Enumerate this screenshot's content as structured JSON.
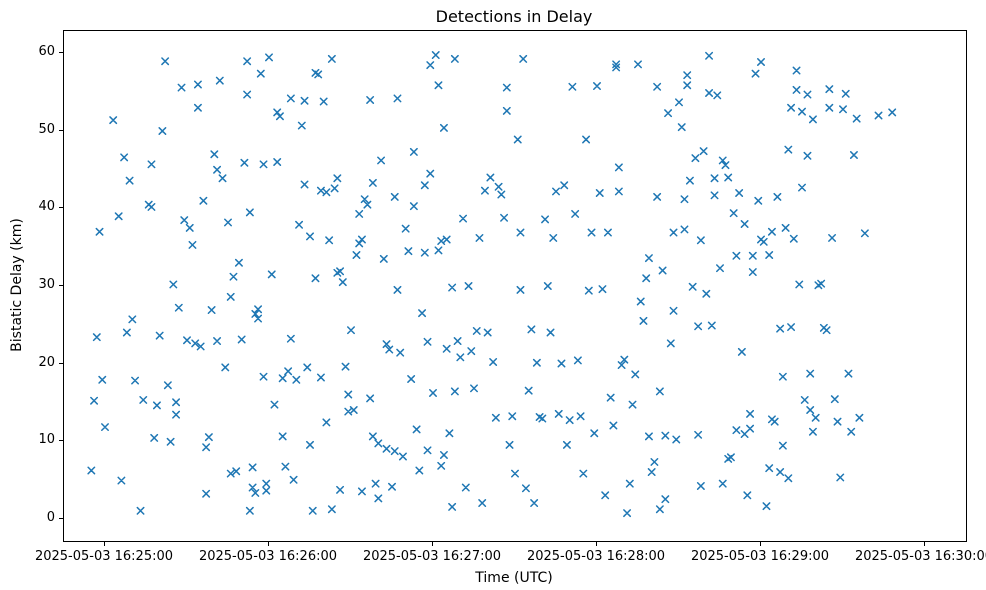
{
  "chart_data": {
    "type": "scatter",
    "title": "Detections in Delay",
    "xlabel": "Time (UTC)",
    "ylabel": "Bistatic Delay (km)",
    "marker": "x",
    "marker_color": "#1f77b4",
    "legend": "none",
    "grid": false,
    "x_axis": {
      "unit": "seconds after 2025-05-03 16:25:00 UTC",
      "min": -15,
      "max": 315,
      "tick_seconds": [
        0,
        60,
        120,
        180,
        240,
        300
      ],
      "tick_labels": [
        "2025-05-03 16:25:00",
        "2025-05-03 16:26:00",
        "2025-05-03 16:27:00",
        "2025-05-03 16:28:00",
        "2025-05-03 16:29:00",
        "2025-05-03 16:30:00"
      ]
    },
    "y_axis": {
      "min": -2.9,
      "max": 62.9,
      "ticks": [
        0,
        10,
        20,
        30,
        40,
        50,
        60
      ],
      "tick_labels": [
        "0",
        "10",
        "20",
        "30",
        "40",
        "50",
        "60"
      ]
    },
    "points": [
      [
        -5,
        6.2
      ],
      [
        -4,
        15.2
      ],
      [
        -3,
        23.4
      ],
      [
        -2,
        37.0
      ],
      [
        -1,
        17.9
      ],
      [
        0,
        11.8
      ],
      [
        3,
        51.4
      ],
      [
        5,
        39.0
      ],
      [
        6,
        4.9
      ],
      [
        7,
        46.6
      ],
      [
        8,
        24.0
      ],
      [
        9,
        43.6
      ],
      [
        10,
        25.7
      ],
      [
        11,
        17.8
      ],
      [
        13,
        1.0
      ],
      [
        14,
        15.3
      ],
      [
        16,
        40.5
      ],
      [
        17,
        40.2
      ],
      [
        17,
        45.7
      ],
      [
        18,
        10.4
      ],
      [
        19,
        14.6
      ],
      [
        20,
        23.6
      ],
      [
        21,
        50.0
      ],
      [
        22,
        59.0
      ],
      [
        23,
        17.2
      ],
      [
        24,
        9.9
      ],
      [
        25,
        30.2
      ],
      [
        26,
        13.4
      ],
      [
        26,
        15.0
      ],
      [
        27,
        27.2
      ],
      [
        28,
        55.6
      ],
      [
        29,
        38.5
      ],
      [
        30,
        23.0
      ],
      [
        31,
        37.5
      ],
      [
        32,
        35.3
      ],
      [
        33,
        22.6
      ],
      [
        34,
        56.0
      ],
      [
        34,
        53.0
      ],
      [
        35,
        22.2
      ],
      [
        36,
        41.0
      ],
      [
        37,
        9.2
      ],
      [
        37,
        3.2
      ],
      [
        38,
        10.5
      ],
      [
        39,
        26.9
      ],
      [
        40,
        47.0
      ],
      [
        41,
        45.0
      ],
      [
        41,
        22.9
      ],
      [
        42,
        56.5
      ],
      [
        43,
        43.9
      ],
      [
        44,
        19.5
      ],
      [
        45,
        38.2
      ],
      [
        46,
        28.6
      ],
      [
        46,
        5.8
      ],
      [
        47,
        31.2
      ],
      [
        48,
        6.1
      ],
      [
        49,
        33.0
      ],
      [
        50,
        23.1
      ],
      [
        51,
        45.9
      ],
      [
        52,
        54.7
      ],
      [
        52,
        59.0
      ],
      [
        53,
        39.5
      ],
      [
        53,
        1.0
      ],
      [
        54,
        6.6
      ],
      [
        54,
        4.0
      ],
      [
        55,
        3.3
      ],
      [
        55,
        26.4
      ],
      [
        56,
        27.0
      ],
      [
        56,
        25.8
      ],
      [
        57,
        57.4
      ],
      [
        58,
        45.7
      ],
      [
        58,
        18.3
      ],
      [
        59,
        3.6
      ],
      [
        59,
        4.5
      ],
      [
        60,
        59.5
      ],
      [
        61,
        31.5
      ],
      [
        62,
        14.7
      ],
      [
        63,
        52.4
      ],
      [
        63,
        46.0
      ],
      [
        64,
        51.9
      ],
      [
        65,
        18.1
      ],
      [
        65,
        10.6
      ],
      [
        66,
        6.7
      ],
      [
        67,
        19.0
      ],
      [
        68,
        54.2
      ],
      [
        68,
        23.2
      ],
      [
        69,
        5.0
      ],
      [
        70,
        17.9
      ],
      [
        71,
        37.9
      ],
      [
        72,
        50.7
      ],
      [
        73,
        53.9
      ],
      [
        73,
        43.1
      ],
      [
        74,
        19.5
      ],
      [
        75,
        9.5
      ],
      [
        75,
        36.4
      ],
      [
        76,
        1.0
      ],
      [
        77,
        31.0
      ],
      [
        77,
        57.5
      ],
      [
        78,
        57.3
      ],
      [
        79,
        42.3
      ],
      [
        79,
        18.2
      ],
      [
        80,
        53.8
      ],
      [
        81,
        42.1
      ],
      [
        81,
        12.4
      ],
      [
        82,
        35.9
      ],
      [
        83,
        1.2
      ],
      [
        83,
        59.3
      ],
      [
        84,
        42.6
      ],
      [
        85,
        43.9
      ],
      [
        85,
        31.7
      ],
      [
        86,
        31.9
      ],
      [
        86,
        3.7
      ],
      [
        87,
        30.5
      ],
      [
        88,
        19.6
      ],
      [
        89,
        16.0
      ],
      [
        89,
        13.8
      ],
      [
        90,
        24.3
      ],
      [
        91,
        14.0
      ],
      [
        92,
        34.0
      ],
      [
        93,
        39.3
      ],
      [
        93,
        35.5
      ],
      [
        94,
        36.0
      ],
      [
        94,
        3.5
      ],
      [
        95,
        41.2
      ],
      [
        96,
        40.5
      ],
      [
        97,
        54.0
      ],
      [
        97,
        15.5
      ],
      [
        98,
        10.6
      ],
      [
        98,
        43.3
      ],
      [
        99,
        4.5
      ],
      [
        100,
        2.6
      ],
      [
        100,
        9.7
      ],
      [
        101,
        46.2
      ],
      [
        102,
        33.5
      ],
      [
        103,
        22.5
      ],
      [
        103,
        9.0
      ],
      [
        104,
        21.8
      ],
      [
        105,
        4.1
      ],
      [
        106,
        41.5
      ],
      [
        106,
        8.7
      ],
      [
        107,
        29.5
      ],
      [
        107,
        54.2
      ],
      [
        108,
        21.4
      ],
      [
        109,
        8.0
      ],
      [
        110,
        37.4
      ],
      [
        111,
        34.5
      ],
      [
        112,
        18.0
      ],
      [
        113,
        47.3
      ],
      [
        113,
        40.3
      ],
      [
        114,
        11.5
      ],
      [
        115,
        6.2
      ],
      [
        116,
        26.5
      ],
      [
        117,
        34.3
      ],
      [
        117,
        43.0
      ],
      [
        118,
        22.8
      ],
      [
        118,
        8.8
      ],
      [
        119,
        58.5
      ],
      [
        119,
        44.5
      ],
      [
        120,
        16.2
      ],
      [
        121,
        59.8
      ],
      [
        122,
        55.9
      ],
      [
        122,
        34.6
      ],
      [
        123,
        35.8
      ],
      [
        123,
        6.8
      ],
      [
        124,
        8.2
      ],
      [
        124,
        50.4
      ],
      [
        125,
        21.9
      ],
      [
        125,
        36.0
      ],
      [
        126,
        11.0
      ],
      [
        127,
        1.5
      ],
      [
        127,
        29.8
      ],
      [
        128,
        59.3
      ],
      [
        128,
        16.4
      ],
      [
        129,
        22.9
      ],
      [
        130,
        20.8
      ],
      [
        131,
        38.7
      ],
      [
        132,
        4.0
      ],
      [
        133,
        30.0
      ],
      [
        134,
        21.6
      ],
      [
        135,
        16.8
      ],
      [
        136,
        24.2
      ],
      [
        137,
        36.2
      ],
      [
        138,
        2.0
      ],
      [
        139,
        42.3
      ],
      [
        140,
        24.0
      ],
      [
        141,
        44.0
      ],
      [
        142,
        20.2
      ],
      [
        143,
        13.0
      ],
      [
        144,
        42.8
      ],
      [
        145,
        41.8
      ],
      [
        146,
        38.8
      ],
      [
        147,
        55.6
      ],
      [
        147,
        52.6
      ],
      [
        148,
        9.5
      ],
      [
        149,
        13.2
      ],
      [
        150,
        5.8
      ],
      [
        151,
        48.9
      ],
      [
        152,
        29.5
      ],
      [
        152,
        36.9
      ],
      [
        153,
        59.3
      ],
      [
        154,
        3.9
      ],
      [
        155,
        16.5
      ],
      [
        156,
        24.4
      ],
      [
        157,
        2.0
      ],
      [
        158,
        20.1
      ],
      [
        159,
        13.1
      ],
      [
        160,
        12.9
      ],
      [
        161,
        38.6
      ],
      [
        162,
        30.0
      ],
      [
        163,
        24.0
      ],
      [
        164,
        36.2
      ],
      [
        165,
        42.2
      ],
      [
        166,
        13.5
      ],
      [
        167,
        20.0
      ],
      [
        168,
        43.0
      ],
      [
        169,
        9.5
      ],
      [
        170,
        12.7
      ],
      [
        171,
        55.7
      ],
      [
        172,
        39.3
      ],
      [
        173,
        20.4
      ],
      [
        174,
        13.2
      ],
      [
        175,
        5.8
      ],
      [
        176,
        48.9
      ],
      [
        177,
        29.4
      ],
      [
        178,
        36.9
      ],
      [
        179,
        11.0
      ],
      [
        180,
        55.8
      ],
      [
        181,
        42.0
      ],
      [
        182,
        29.6
      ],
      [
        183,
        3.0
      ],
      [
        184,
        36.9
      ],
      [
        185,
        15.6
      ],
      [
        186,
        12.0
      ],
      [
        187,
        58.2
      ],
      [
        187,
        58.6
      ],
      [
        188,
        42.2
      ],
      [
        188,
        45.3
      ],
      [
        189,
        19.8
      ],
      [
        190,
        20.5
      ],
      [
        191,
        0.7
      ],
      [
        192,
        4.5
      ],
      [
        193,
        14.7
      ],
      [
        194,
        18.6
      ],
      [
        195,
        58.6
      ],
      [
        196,
        28.0
      ],
      [
        197,
        25.5
      ],
      [
        198,
        31.0
      ],
      [
        199,
        33.6
      ],
      [
        199,
        10.6
      ],
      [
        200,
        6.0
      ],
      [
        201,
        7.3
      ],
      [
        202,
        55.7
      ],
      [
        202,
        41.5
      ],
      [
        203,
        16.4
      ],
      [
        203,
        1.2
      ],
      [
        204,
        32.0
      ],
      [
        205,
        2.5
      ],
      [
        205,
        10.7
      ],
      [
        206,
        52.3
      ],
      [
        207,
        22.6
      ],
      [
        208,
        36.9
      ],
      [
        208,
        26.8
      ],
      [
        209,
        10.2
      ],
      [
        210,
        53.7
      ],
      [
        211,
        50.5
      ],
      [
        212,
        41.2
      ],
      [
        212,
        37.3
      ],
      [
        213,
        55.9
      ],
      [
        213,
        57.2
      ],
      [
        214,
        43.6
      ],
      [
        215,
        29.9
      ],
      [
        216,
        46.5
      ],
      [
        217,
        24.8
      ],
      [
        217,
        10.8
      ],
      [
        218,
        35.9
      ],
      [
        218,
        4.2
      ],
      [
        219,
        47.4
      ],
      [
        220,
        29.0
      ],
      [
        221,
        59.7
      ],
      [
        221,
        54.9
      ],
      [
        222,
        24.9
      ],
      [
        223,
        43.9
      ],
      [
        223,
        41.7
      ],
      [
        224,
        54.6
      ],
      [
        225,
        32.3
      ],
      [
        226,
        4.5
      ],
      [
        226,
        46.2
      ],
      [
        227,
        45.6
      ],
      [
        228,
        44.0
      ],
      [
        228,
        7.7
      ],
      [
        229,
        7.9
      ],
      [
        230,
        39.4
      ],
      [
        231,
        33.9
      ],
      [
        231,
        11.4
      ],
      [
        232,
        42.0
      ],
      [
        233,
        21.5
      ],
      [
        234,
        38.0
      ],
      [
        234,
        10.9
      ],
      [
        235,
        3.0
      ],
      [
        236,
        13.5
      ],
      [
        236,
        11.6
      ],
      [
        237,
        33.9
      ],
      [
        237,
        31.8
      ],
      [
        238,
        57.4
      ],
      [
        239,
        41.0
      ],
      [
        240,
        58.9
      ],
      [
        240,
        36.0
      ],
      [
        241,
        35.7
      ],
      [
        242,
        1.6
      ],
      [
        243,
        34.0
      ],
      [
        243,
        6.5
      ],
      [
        244,
        37.0
      ],
      [
        244,
        12.8
      ],
      [
        245,
        12.5
      ],
      [
        246,
        41.5
      ],
      [
        247,
        24.5
      ],
      [
        247,
        6.0
      ],
      [
        248,
        18.3
      ],
      [
        248,
        9.4
      ],
      [
        249,
        37.5
      ],
      [
        250,
        47.6
      ],
      [
        250,
        5.2
      ],
      [
        251,
        53.0
      ],
      [
        251,
        24.7
      ],
      [
        252,
        36.1
      ],
      [
        253,
        57.8
      ],
      [
        253,
        55.3
      ],
      [
        254,
        30.2
      ],
      [
        255,
        52.5
      ],
      [
        255,
        42.7
      ],
      [
        256,
        15.3
      ],
      [
        257,
        54.7
      ],
      [
        257,
        46.8
      ],
      [
        258,
        18.7
      ],
      [
        258,
        14.0
      ],
      [
        259,
        11.2
      ],
      [
        259,
        51.5
      ],
      [
        260,
        13.0
      ],
      [
        261,
        30.1
      ],
      [
        262,
        30.3
      ],
      [
        263,
        24.6
      ],
      [
        264,
        24.3
      ],
      [
        265,
        55.4
      ],
      [
        265,
        53.0
      ],
      [
        266,
        36.2
      ],
      [
        267,
        15.4
      ],
      [
        268,
        12.5
      ],
      [
        269,
        5.3
      ],
      [
        270,
        52.8
      ],
      [
        271,
        54.8
      ],
      [
        272,
        18.7
      ],
      [
        273,
        11.2
      ],
      [
        274,
        46.9
      ],
      [
        275,
        51.6
      ],
      [
        276,
        13.0
      ],
      [
        278,
        36.8
      ],
      [
        283,
        52.0
      ],
      [
        288,
        52.4
      ]
    ]
  }
}
